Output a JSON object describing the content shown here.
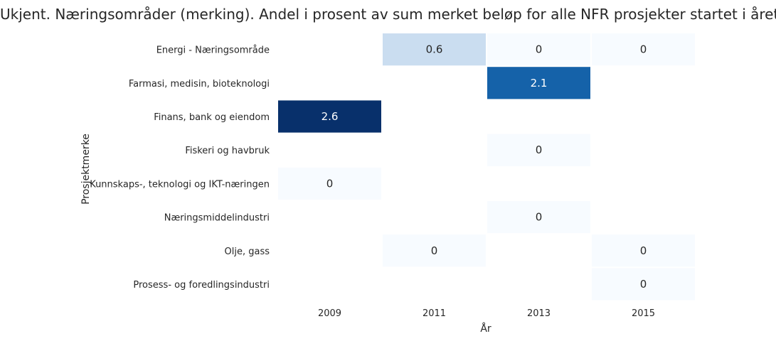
{
  "chart_data": {
    "type": "heatmap",
    "title": "Ukjent. Næringsområder (merking). Andel i prosent av sum merket beløp for alle NFR prosjekter startet i året",
    "xlabel": "År",
    "ylabel": "Prosjektmerke",
    "columns": [
      "2009",
      "2011",
      "2013",
      "2015"
    ],
    "rows": [
      "Energi - Næringsområde",
      "Farmasi, medisin, bioteknologi",
      "Finans, bank og eiendom",
      "Fiskeri og havbruk",
      "Kunnskaps-, teknologi og IKT-næringen",
      "Næringsmiddelindustri",
      "Olje, gass",
      "Prosess- og foredlingsindustri"
    ],
    "values": [
      [
        null,
        0.6,
        0,
        0
      ],
      [
        null,
        null,
        2.1,
        null
      ],
      [
        2.6,
        null,
        null,
        null
      ],
      [
        null,
        null,
        0,
        null
      ],
      [
        0,
        null,
        null,
        null
      ],
      [
        null,
        null,
        0,
        null
      ],
      [
        null,
        0,
        null,
        0
      ],
      [
        null,
        null,
        null,
        0
      ]
    ],
    "colormap": "Blues",
    "vmin": 0,
    "vmax": 2.6,
    "grid": false
  }
}
